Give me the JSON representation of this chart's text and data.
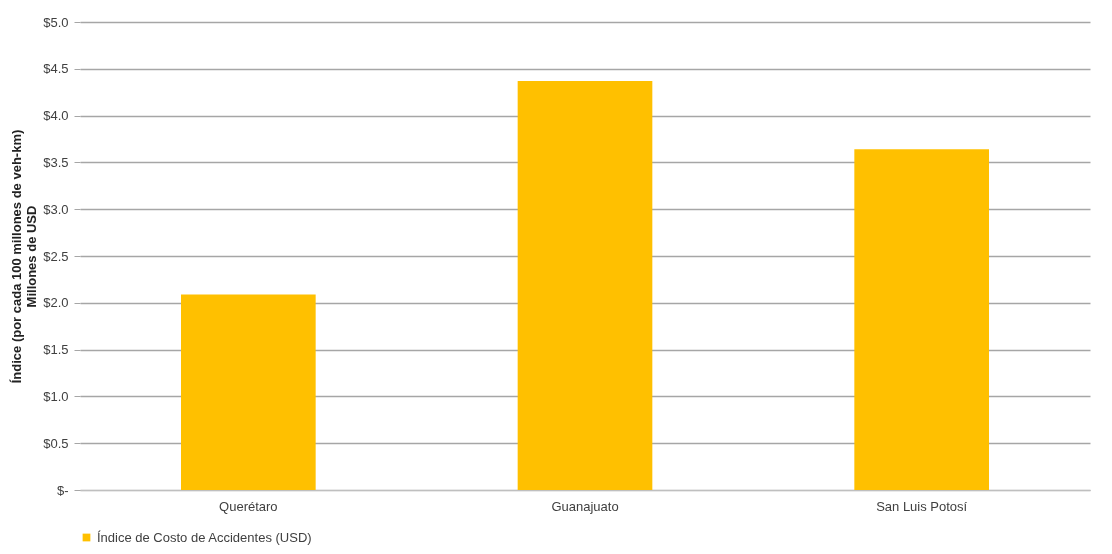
{
  "chart_data": {
    "type": "bar",
    "ylabel": "Índice (por cada 100 millones de veh-km)\nMillones de USD",
    "categories": [
      "Querétaro",
      "Guanajuato",
      "San Luis Potosí"
    ],
    "series": [
      {
        "name": "Índice de Costo de Accidentes (USD)",
        "color": "#ffc000",
        "values": [
          2.09,
          4.37,
          3.64
        ]
      }
    ],
    "ylim": [
      0,
      5
    ],
    "yticks": [
      {
        "value": 0,
        "label": "$-"
      },
      {
        "value": 0.5,
        "label": "$0.5"
      },
      {
        "value": 1,
        "label": "$1.0"
      },
      {
        "value": 1.5,
        "label": "$1.5"
      },
      {
        "value": 2,
        "label": "$2.0"
      },
      {
        "value": 2.5,
        "label": "$2.5"
      },
      {
        "value": 3,
        "label": "$3.0"
      },
      {
        "value": 3.5,
        "label": "$3.5"
      },
      {
        "value": 4,
        "label": "$4.0"
      },
      {
        "value": 4.5,
        "label": "$4.5"
      },
      {
        "value": 5,
        "label": "$5.0"
      }
    ],
    "grid": "y",
    "legend": "bottom"
  }
}
